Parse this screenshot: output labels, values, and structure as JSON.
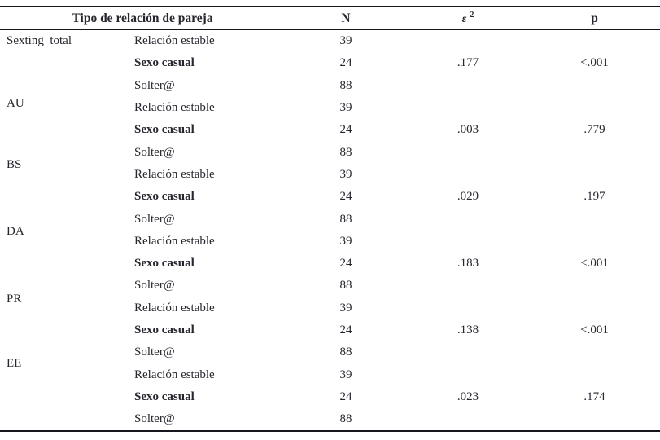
{
  "table": {
    "headers": {
      "group_category": "Tipo de relación de pareja",
      "n": "N",
      "eps_symbol": "ε",
      "eps_sup": "2",
      "p": "p"
    },
    "groups": [
      {
        "label": "Sexting  total",
        "rows": [
          {
            "category": "Relación estable",
            "n": "39",
            "eps": "",
            "p": ""
          },
          {
            "category": "Sexo casual",
            "n": "24",
            "eps": ".177",
            "p": "<.001"
          },
          {
            "category": "Solter@",
            "n": "88",
            "eps": "",
            "p": ""
          }
        ]
      },
      {
        "label": "AU",
        "rows": [
          {
            "category": "Relación estable",
            "n": "39",
            "eps": "",
            "p": ""
          },
          {
            "category": "Sexo casual",
            "n": "24",
            "eps": ".003",
            "p": ".779"
          },
          {
            "category": "Solter@",
            "n": "88",
            "eps": "",
            "p": ""
          }
        ]
      },
      {
        "label": "BS",
        "rows": [
          {
            "category": "Relación estable",
            "n": "39",
            "eps": "",
            "p": ""
          },
          {
            "category": "Sexo casual",
            "n": "24",
            "eps": ".029",
            "p": ".197"
          },
          {
            "category": "Solter@",
            "n": "88",
            "eps": "",
            "p": ""
          }
        ]
      },
      {
        "label": "DA",
        "rows": [
          {
            "category": "Relación estable",
            "n": "39",
            "eps": "",
            "p": ""
          },
          {
            "category": "Sexo casual",
            "n": "24",
            "eps": ".183",
            "p": "<.001"
          },
          {
            "category": "Solter@",
            "n": "88",
            "eps": "",
            "p": ""
          }
        ]
      },
      {
        "label": "PR",
        "rows": [
          {
            "category": "Relación estable",
            "n": "39",
            "eps": "",
            "p": ""
          },
          {
            "category": "Sexo casual",
            "n": "24",
            "eps": ".138",
            "p": "<.001"
          },
          {
            "category": "Solter@",
            "n": "88",
            "eps": "",
            "p": ""
          }
        ]
      },
      {
        "label": "EE",
        "rows": [
          {
            "category": "Relación estable",
            "n": "39",
            "eps": "",
            "p": ""
          },
          {
            "category": "Sexo casual",
            "n": "24",
            "eps": ".023",
            "p": ".174"
          },
          {
            "category": "Solter@",
            "n": "88",
            "eps": "",
            "p": ""
          }
        ]
      }
    ]
  }
}
